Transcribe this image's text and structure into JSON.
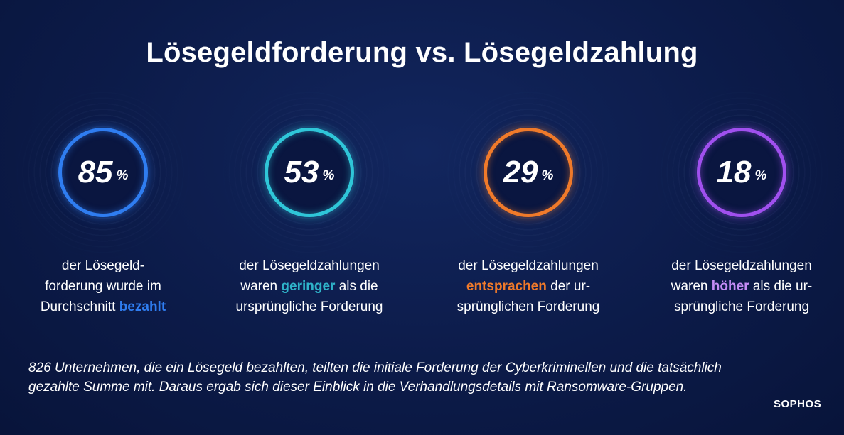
{
  "title": "Lösegeldforderung vs. Lösegeldzahlung",
  "stats": [
    {
      "value": "85",
      "unit": "%",
      "color": "#2f7df0",
      "caption": {
        "line1": "der Lösegeld-",
        "line2": "forderung wurde im",
        "line3_before": "Durchschnitt ",
        "highlight": "bezahlt",
        "line3_after": "",
        "line4": ""
      }
    },
    {
      "value": "53",
      "unit": "%",
      "color": "#2fc6d8",
      "caption": {
        "line1": "der Lösegeldzahlungen",
        "line2_before": "waren ",
        "highlight": "geringer",
        "line2_after": " als die",
        "line3": "ursprüngliche Forderung"
      }
    },
    {
      "value": "29",
      "unit": "%",
      "color": "#f07a2a",
      "caption": {
        "line1": "der Lösegeldzahlungen",
        "line2_before": "",
        "highlight": "entsprachen",
        "line2_after": " der ur-",
        "line3": "sprünglichen  Forderung"
      }
    },
    {
      "value": "18",
      "unit": "%",
      "color": "#a050ee",
      "caption": {
        "line1": "der Lösegeldzahlungen",
        "line2_before": "waren ",
        "highlight": "höher",
        "line2_after": " als die ur-",
        "line3": "sprüngliche  Forderung"
      }
    }
  ],
  "footnote": {
    "line1": "826 Unternehmen, die ein Lösegeld bezahlten, teilten die initiale Forderung der Cyberkriminellen und die tatsächlich",
    "line2": "gezahlte Summe mit. Daraus ergab sich dieser Einblick in die Verhandlungsdetails mit Ransomware-Gruppen."
  },
  "logo": "SOPHOS"
}
